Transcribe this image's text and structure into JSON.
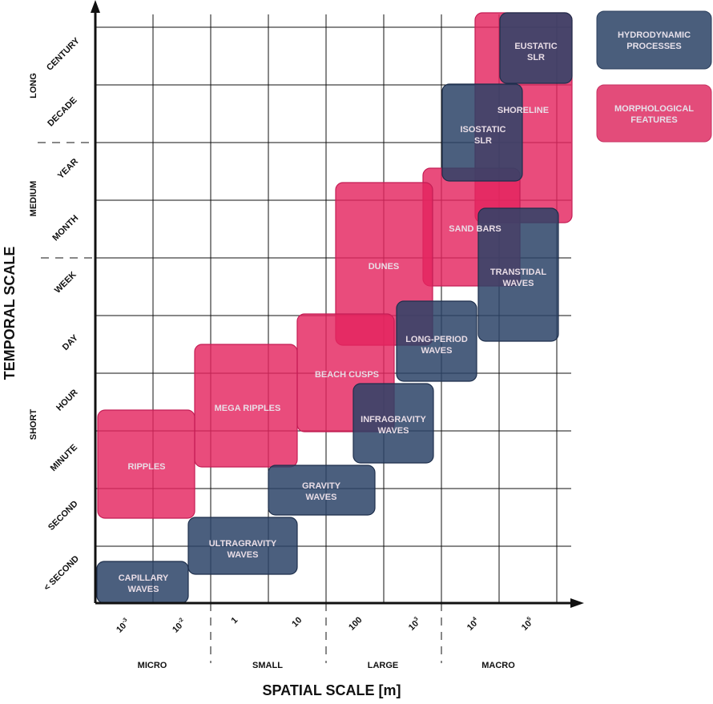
{
  "axes": {
    "x_title": "SPATIAL SCALE [m]",
    "y_title": "TEMPORAL SCALE",
    "x_ticks": [
      {
        "base": "10",
        "exp": "-3"
      },
      {
        "base": "10",
        "exp": "-2"
      },
      {
        "base": "1",
        "exp": ""
      },
      {
        "base": "10",
        "exp": ""
      },
      {
        "base": "100",
        "exp": ""
      },
      {
        "base": "10",
        "exp": "3"
      },
      {
        "base": "10",
        "exp": "4"
      },
      {
        "base": "10",
        "exp": "5"
      }
    ],
    "x_groups": [
      "MICRO",
      "SMALL",
      "LARGE",
      "MACRO"
    ],
    "y_ticks": [
      "< SECOND",
      "SECOND",
      "MINUTE",
      "HOUR",
      "DAY",
      "WEEK",
      "MONTH",
      "YEAR",
      "DECADE",
      "CENTURY"
    ],
    "y_groups": [
      "SHORT",
      "MEDIUM",
      "LONG"
    ]
  },
  "legend": [
    {
      "label": "HYDRODYNAMIC PROCESSES",
      "lines": [
        "HYDRODYNAMIC",
        "PROCESSES"
      ],
      "category": "hydro"
    },
    {
      "label": "MORPHOLOGICAL FEATURES",
      "lines": [
        "MORPHOLOGICAL",
        "FEATURES"
      ],
      "category": "morph"
    }
  ],
  "colors": {
    "hydro": "#2b4367",
    "morph": "#e4245f",
    "hydro_legend": "#4a5e7c",
    "morph_legend": "#e34c7a"
  },
  "features": [
    {
      "name": "ripples",
      "lines": [
        "RIPPLES"
      ],
      "category": "morph"
    },
    {
      "name": "mega-ripples",
      "lines": [
        "MEGA RIPPLES"
      ],
      "category": "morph"
    },
    {
      "name": "beach-cusps",
      "lines": [
        "BEACH CUSPS"
      ],
      "category": "morph"
    },
    {
      "name": "dunes",
      "lines": [
        "DUNES"
      ],
      "category": "morph"
    },
    {
      "name": "sand-bars",
      "lines": [
        "SAND BARS"
      ],
      "category": "morph"
    },
    {
      "name": "shoreline",
      "lines": [
        "SHORELINE"
      ],
      "category": "morph"
    },
    {
      "name": "capillary-waves",
      "lines": [
        "CAPILLARY",
        "WAVES"
      ],
      "category": "hydro"
    },
    {
      "name": "ultragravity-waves",
      "lines": [
        "ULTRAGRAVITY",
        "WAVES"
      ],
      "category": "hydro"
    },
    {
      "name": "gravity-waves",
      "lines": [
        "GRAVITY",
        "WAVES"
      ],
      "category": "hydro"
    },
    {
      "name": "infragravity-waves",
      "lines": [
        "INFRAGRAVITY",
        "WAVES"
      ],
      "category": "hydro"
    },
    {
      "name": "long-period-waves",
      "lines": [
        "LONG-PERIOD",
        "WAVES"
      ],
      "category": "hydro"
    },
    {
      "name": "transtidal-waves",
      "lines": [
        "TRANSTIDAL",
        "WAVES"
      ],
      "category": "hydro"
    },
    {
      "name": "isostatic-slr",
      "lines": [
        "ISOSTATIC",
        "SLR"
      ],
      "category": "hydro"
    },
    {
      "name": "eustatic-slr",
      "lines": [
        "EUSTATIC",
        "SLR"
      ],
      "category": "hydro"
    }
  ]
}
